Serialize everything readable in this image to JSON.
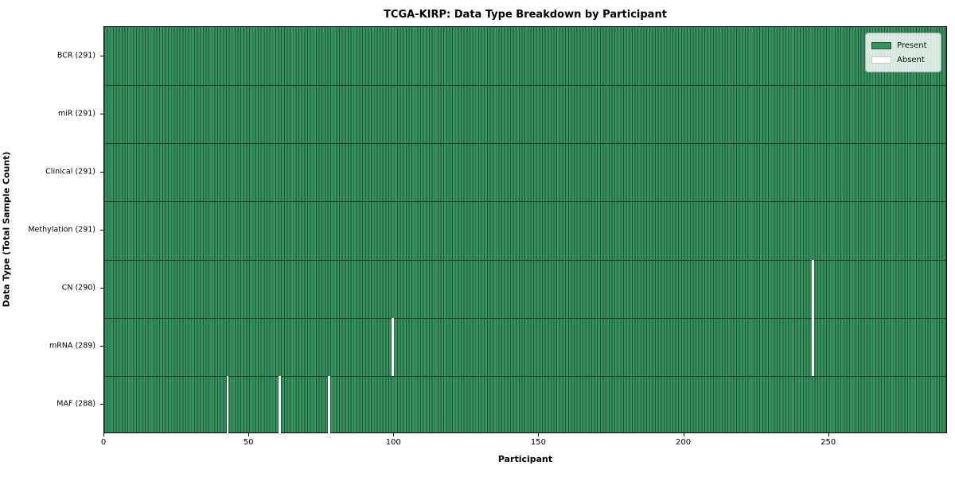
{
  "title": "TCGA-KIRP: Data Type Breakdown by Participant",
  "axes": {
    "xlabel": "Participant",
    "ylabel": "Data Type (Total Sample Count)"
  },
  "legend": {
    "present_label": "Present",
    "absent_label": "Absent"
  },
  "colors": {
    "present_fill": "#36925f",
    "present_edge": "#1d5434",
    "absent_fill": "#ffffff",
    "row_divider": "#1a4029",
    "plot_border": "#000000"
  },
  "chart_data": {
    "type": "heatmap",
    "title": "TCGA-KIRP: Data Type Breakdown by Participant",
    "xlabel": "Participant",
    "ylabel": "Data Type (Total Sample Count)",
    "n_participants": 291,
    "x_ticks": [
      0,
      50,
      100,
      150,
      200,
      250
    ],
    "legend_position": "upper right",
    "legend": [
      {
        "label": "Present",
        "color": "#36925f"
      },
      {
        "label": "Absent",
        "color": "#ffffff"
      }
    ],
    "rows": [
      {
        "label": "BCR (291)",
        "data_type": "BCR",
        "present_count": 291,
        "absent_participants": []
      },
      {
        "label": "miR (291)",
        "data_type": "miR",
        "present_count": 291,
        "absent_participants": []
      },
      {
        "label": "Clinical (291)",
        "data_type": "Clinical",
        "present_count": 291,
        "absent_participants": []
      },
      {
        "label": "Methylation (291)",
        "data_type": "Methylation",
        "present_count": 291,
        "absent_participants": []
      },
      {
        "label": "CN (290)",
        "data_type": "CN",
        "present_count": 290,
        "absent_participants": [
          244
        ]
      },
      {
        "label": "mRNA (289)",
        "data_type": "mRNA",
        "present_count": 289,
        "absent_participants": [
          99,
          244
        ]
      },
      {
        "label": "MAF (288)",
        "data_type": "MAF",
        "present_count": 288,
        "absent_participants": [
          42,
          60,
          77
        ]
      }
    ]
  }
}
